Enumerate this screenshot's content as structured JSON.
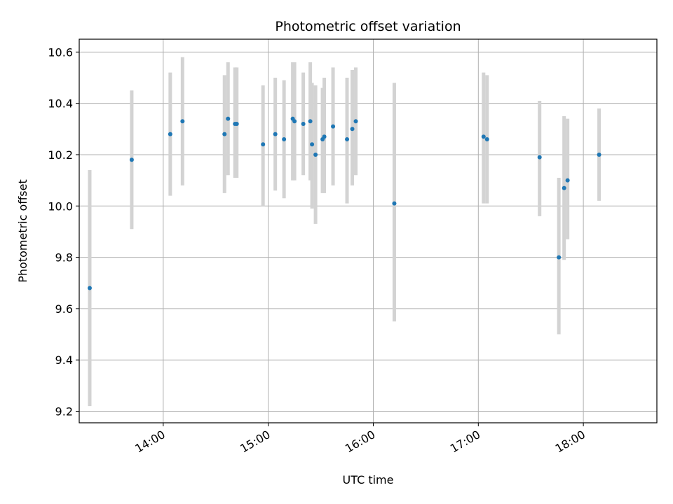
{
  "chart_data": {
    "type": "scatter",
    "title": "Photometric offset variation",
    "xlabel": "UTC time",
    "ylabel": "Photometric offset",
    "xlim": [
      "13:12",
      "18:42"
    ],
    "ylim": [
      9.155,
      10.65
    ],
    "x_ticks": [
      "14:00",
      "15:00",
      "16:00",
      "17:00",
      "18:00"
    ],
    "y_ticks": [
      9.2,
      9.4,
      9.6,
      9.8,
      10.0,
      10.2,
      10.4,
      10.6
    ],
    "y_tick_labels": [
      "9.2",
      "9.4",
      "9.6",
      "9.8",
      "10.0",
      "10.2",
      "10.4",
      "10.6"
    ],
    "grid": true,
    "colors": {
      "point": "#1f77b4",
      "errorbar": "#d3d3d3",
      "grid": "#b0b0b0"
    },
    "points": [
      {
        "x": "13:18",
        "y": 9.68,
        "low": 9.22,
        "high": 10.14
      },
      {
        "x": "13:42",
        "y": 10.18,
        "low": 9.91,
        "high": 10.45
      },
      {
        "x": "14:04",
        "y": 10.28,
        "low": 10.04,
        "high": 10.52
      },
      {
        "x": "14:11",
        "y": 10.33,
        "low": 10.08,
        "high": 10.58
      },
      {
        "x": "14:35",
        "y": 10.28,
        "low": 10.05,
        "high": 10.51
      },
      {
        "x": "14:37",
        "y": 10.34,
        "low": 10.12,
        "high": 10.56
      },
      {
        "x": "14:41",
        "y": 10.32,
        "low": 10.11,
        "high": 10.54
      },
      {
        "x": "14:42",
        "y": 10.32,
        "low": 10.11,
        "high": 10.54
      },
      {
        "x": "14:57",
        "y": 10.24,
        "low": 10.0,
        "high": 10.47
      },
      {
        "x": "15:04",
        "y": 10.28,
        "low": 10.06,
        "high": 10.5
      },
      {
        "x": "15:09",
        "y": 10.26,
        "low": 10.03,
        "high": 10.49
      },
      {
        "x": "15:14",
        "y": 10.34,
        "low": 10.1,
        "high": 10.56
      },
      {
        "x": "15:15",
        "y": 10.33,
        "low": 10.1,
        "high": 10.56
      },
      {
        "x": "15:20",
        "y": 10.32,
        "low": 10.12,
        "high": 10.52
      },
      {
        "x": "15:24",
        "y": 10.33,
        "low": 10.1,
        "high": 10.56
      },
      {
        "x": "15:25",
        "y": 10.24,
        "low": 9.99,
        "high": 10.48
      },
      {
        "x": "15:27",
        "y": 10.2,
        "low": 9.93,
        "high": 10.47
      },
      {
        "x": "15:31",
        "y": 10.26,
        "low": 10.05,
        "high": 10.46
      },
      {
        "x": "15:32",
        "y": 10.27,
        "low": 10.05,
        "high": 10.5
      },
      {
        "x": "15:37",
        "y": 10.31,
        "low": 10.08,
        "high": 10.54
      },
      {
        "x": "15:45",
        "y": 10.26,
        "low": 10.01,
        "high": 10.5
      },
      {
        "x": "15:48",
        "y": 10.3,
        "low": 10.08,
        "high": 10.53
      },
      {
        "x": "15:50",
        "y": 10.33,
        "low": 10.12,
        "high": 10.54
      },
      {
        "x": "16:12",
        "y": 10.01,
        "low": 9.55,
        "high": 10.48
      },
      {
        "x": "17:03",
        "y": 10.27,
        "low": 10.01,
        "high": 10.52
      },
      {
        "x": "17:05",
        "y": 10.26,
        "low": 10.01,
        "high": 10.51
      },
      {
        "x": "17:35",
        "y": 10.19,
        "low": 9.96,
        "high": 10.41
      },
      {
        "x": "17:46",
        "y": 9.8,
        "low": 9.5,
        "high": 10.11
      },
      {
        "x": "17:49",
        "y": 10.07,
        "low": 9.79,
        "high": 10.35
      },
      {
        "x": "17:51",
        "y": 10.1,
        "low": 9.87,
        "high": 10.34
      },
      {
        "x": "18:09",
        "y": 10.2,
        "low": 10.02,
        "high": 10.38
      }
    ]
  }
}
